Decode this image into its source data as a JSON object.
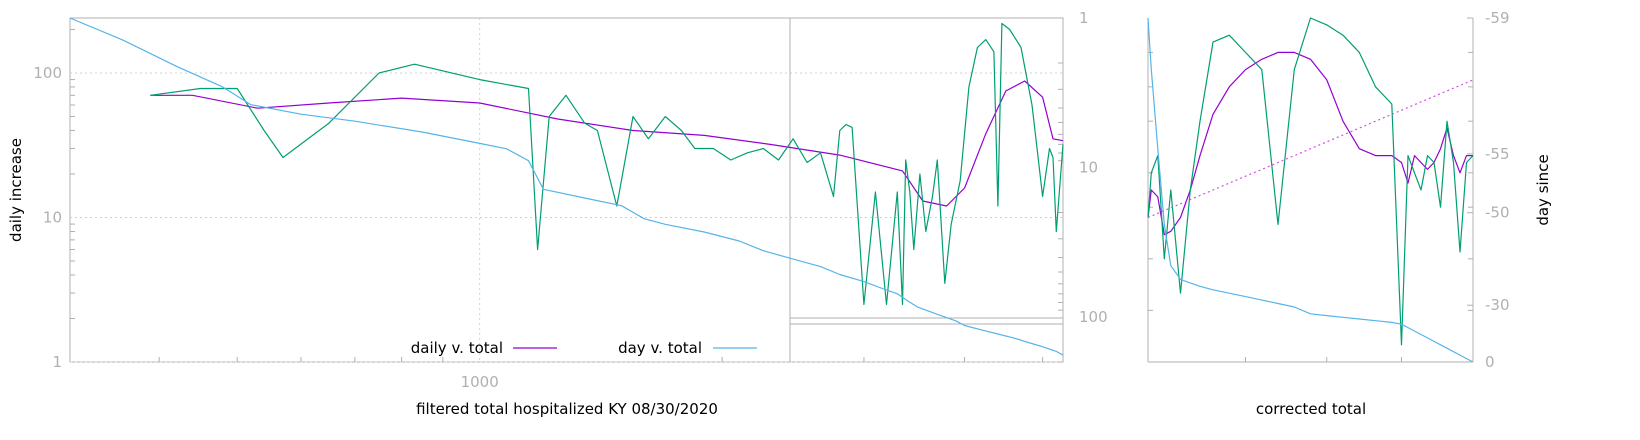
{
  "chart_data": [
    {
      "type": "line",
      "xlabel": "filtered total hospitalized KY 08/30/2020",
      "ylabel": "daily increase",
      "y2label": "day since",
      "x_scale": "log",
      "y_scale": "log",
      "y2_scale": "log",
      "y2_reversed": true,
      "xlim": [
        310,
        5300
      ],
      "ylim": [
        1,
        240
      ],
      "y2lim": [
        1,
        200
      ],
      "x_tick_labels": [
        {
          "value": 1000,
          "label": "1000"
        }
      ],
      "y_tick_labels": [
        {
          "value": 1,
          "label": "1"
        },
        {
          "value": 10,
          "label": "10"
        },
        {
          "value": 100,
          "label": "100"
        }
      ],
      "y2_tick_labels": [
        {
          "value": 1,
          "label": "1"
        },
        {
          "value": 10,
          "label": "10"
        },
        {
          "value": 100,
          "label": "100"
        }
      ],
      "grid": true,
      "legend_position": "bottom-center",
      "series": [
        {
          "name": "daily v. total",
          "color": "#9400d3",
          "axis": "y",
          "x": [
            390,
            440,
            530,
            650,
            800,
            1000,
            1250,
            1550,
            1900,
            2300,
            2800,
            3350,
            3550,
            3800,
            4000,
            4250,
            4500,
            4750,
            5000,
            5150,
            5300
          ],
          "values": [
            70,
            70,
            57,
            62,
            67,
            62,
            48,
            40,
            37,
            32,
            27,
            21,
            13,
            12,
            16,
            38,
            75,
            88,
            68,
            35,
            34
          ]
        },
        {
          "name": "",
          "color": "#009e73",
          "axis": "y",
          "x": [
            390,
            450,
            500,
            540,
            570,
            650,
            750,
            830,
            1000,
            1150,
            1180,
            1220,
            1280,
            1350,
            1400,
            1480,
            1550,
            1620,
            1700,
            1780,
            1850,
            1950,
            2050,
            2150,
            2250,
            2350,
            2450,
            2550,
            2650,
            2750,
            2800,
            2850,
            2900,
            3000,
            3100,
            3200,
            3300,
            3350,
            3380,
            3420,
            3460,
            3520,
            3580,
            3650,
            3700,
            3780,
            3850,
            3950,
            4050,
            4150,
            4250,
            4350,
            4400,
            4450,
            4550,
            4700,
            4850,
            5000,
            5100,
            5150,
            5200,
            5300
          ],
          "values": [
            70,
            78,
            78,
            40,
            26,
            45,
            100,
            115,
            90,
            78,
            6,
            50,
            70,
            45,
            40,
            12,
            50,
            35,
            50,
            40,
            30,
            30,
            25,
            28,
            30,
            25,
            35,
            24,
            28,
            14,
            40,
            44,
            42,
            2.5,
            15,
            2.5,
            15,
            2.5,
            25,
            15,
            6,
            20,
            8,
            14,
            25,
            3.5,
            9,
            18,
            80,
            150,
            170,
            140,
            12,
            220,
            200,
            150,
            60,
            14,
            30,
            26,
            8,
            32
          ]
        },
        {
          "name": "day v. total",
          "color": "#56b4e9",
          "axis": "y2",
          "x": [
            310,
            360,
            420,
            480,
            520,
            600,
            700,
            850,
            1000,
            1080,
            1150,
            1200,
            1350,
            1500,
            1600,
            1700,
            1900,
            2100,
            2250,
            2450,
            2650,
            2800,
            3000,
            3150,
            3300,
            3400,
            3500,
            3700,
            3900,
            4000,
            4200,
            4400,
            4600,
            4800,
            5000,
            5200,
            5300
          ],
          "values": [
            1,
            1.4,
            2.1,
            2.9,
            3.8,
            4.4,
            4.9,
            5.8,
            6.9,
            7.5,
            9,
            14,
            16,
            18,
            22,
            24,
            27,
            31,
            36,
            41,
            46,
            52,
            58,
            64,
            70,
            78,
            86,
            96,
            106,
            114,
            122,
            130,
            138,
            148,
            158,
            170,
            180
          ]
        }
      ]
    },
    {
      "type": "line",
      "xlabel": "corrected total",
      "ylabel": "",
      "y2label": "day since",
      "y2_tick_labels": [
        {
          "value": -59,
          "label": "-59"
        },
        {
          "value": -55,
          "label": "-55"
        },
        {
          "value": -50,
          "label": "-50"
        },
        {
          "value": -30,
          "label": "-30"
        },
        {
          "value": 0,
          "label": "0"
        }
      ],
      "grid": false,
      "x": [
        0,
        0.01,
        0.03,
        0.05,
        0.07,
        0.1,
        0.13,
        0.16,
        0.2,
        0.25,
        0.3,
        0.35,
        0.4,
        0.45,
        0.5,
        0.55,
        0.6,
        0.65,
        0.7,
        0.75,
        0.78,
        0.8,
        0.82,
        0.84,
        0.86,
        0.88,
        0.9,
        0.92,
        0.94,
        0.96,
        0.98,
        1
      ],
      "series": [
        {
          "name": "",
          "color": "#9400d3",
          "values": [
            0.42,
            0.5,
            0.48,
            0.37,
            0.38,
            0.42,
            0.5,
            0.6,
            0.72,
            0.8,
            0.85,
            0.88,
            0.9,
            0.9,
            0.88,
            0.82,
            0.7,
            0.62,
            0.6,
            0.6,
            0.58,
            0.52,
            0.6,
            0.58,
            0.56,
            0.58,
            0.62,
            0.68,
            0.6,
            0.55,
            0.6,
            0.6
          ]
        },
        {
          "name": "",
          "color": "#009e73",
          "values": [
            0.42,
            0.55,
            0.6,
            0.3,
            0.5,
            0.2,
            0.5,
            0.7,
            0.93,
            0.95,
            0.9,
            0.85,
            0.4,
            0.85,
            1.0,
            0.98,
            0.95,
            0.9,
            0.8,
            0.75,
            0.05,
            0.6,
            0.55,
            0.5,
            0.6,
            0.58,
            0.45,
            0.7,
            0.58,
            0.32,
            0.58,
            0.6
          ]
        },
        {
          "name": "",
          "color": "#56b4e9",
          "values": [
            1.0,
            0.85,
            0.62,
            0.4,
            0.28,
            0.24,
            0.23,
            0.22,
            0.21,
            0.2,
            0.19,
            0.18,
            0.17,
            0.16,
            0.14,
            0.135,
            0.13,
            0.125,
            0.12,
            0.115,
            0.11,
            0.1,
            0.09,
            0.08,
            0.07,
            0.06,
            0.05,
            0.04,
            0.03,
            0.02,
            0.01,
            0.0
          ]
        },
        {
          "name": "",
          "color": "#d14fe0",
          "dashed": true,
          "values": [
            0.42,
            0.424,
            0.432,
            0.44,
            0.448,
            0.46,
            0.472,
            0.484,
            0.5,
            0.52,
            0.54,
            0.56,
            0.58,
            0.6,
            0.62,
            0.64,
            0.66,
            0.68,
            0.7,
            0.72,
            0.732,
            0.74,
            0.748,
            0.756,
            0.764,
            0.772,
            0.78,
            0.788,
            0.796,
            0.804,
            0.812,
            0.82
          ]
        }
      ]
    }
  ]
}
